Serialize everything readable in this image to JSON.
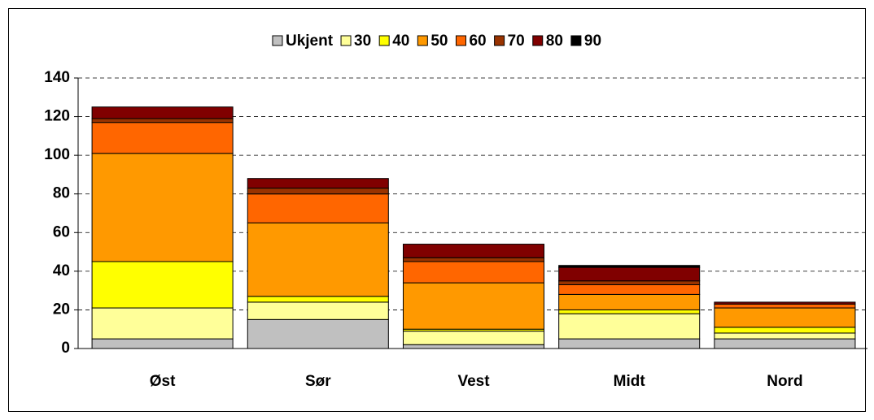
{
  "chart_data": {
    "type": "stacked_bar",
    "categories": [
      "Øst",
      "Sør",
      "Vest",
      "Midt",
      "Nord"
    ],
    "series": [
      {
        "name": "Ukjent",
        "color": "#c0c0c0",
        "values": [
          5,
          15,
          2,
          5,
          5
        ]
      },
      {
        "name": "30",
        "color": "#ffff99",
        "values": [
          16,
          9,
          7,
          13,
          3
        ]
      },
      {
        "name": "40",
        "color": "#ffff00",
        "values": [
          24,
          3,
          1,
          2,
          3
        ]
      },
      {
        "name": "50",
        "color": "#ff9900",
        "values": [
          56,
          38,
          24,
          8,
          10
        ]
      },
      {
        "name": "60",
        "color": "#ff6600",
        "values": [
          16,
          15,
          11,
          5,
          2
        ]
      },
      {
        "name": "70",
        "color": "#993300",
        "values": [
          2,
          3,
          2,
          2,
          0
        ]
      },
      {
        "name": "80",
        "color": "#800000",
        "values": [
          6,
          5,
          7,
          7,
          1
        ]
      },
      {
        "name": "90",
        "color": "#000000",
        "values": [
          0,
          0,
          0,
          1,
          0
        ]
      }
    ],
    "ylim": [
      0,
      140
    ],
    "yticks": [
      0,
      20,
      40,
      60,
      80,
      100,
      120,
      140
    ],
    "grid": true,
    "legend": "top"
  }
}
